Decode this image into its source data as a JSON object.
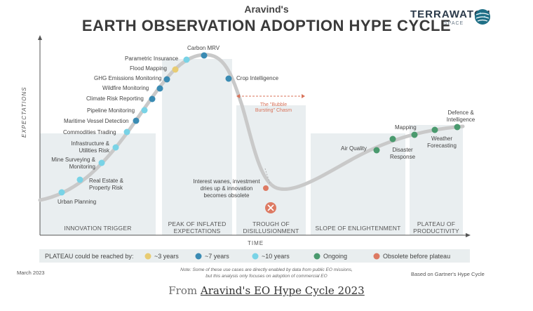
{
  "header": {
    "supertitle": "Aravind's",
    "title": "EARTH OBSERVATION ADOPTION HYPE CYCLE",
    "brand_name": "TERRAWATCH",
    "brand_sub": "SPACE"
  },
  "axes": {
    "y_label": "EXPECTATIONS",
    "x_label": "TIME"
  },
  "phases": [
    {
      "label": "INNOVATION TRIGGER"
    },
    {
      "label": "PEAK OF INFLATED EXPECTATIONS"
    },
    {
      "label": "TROUGH OF DISILLUSIONMENT"
    },
    {
      "label": "SLOPE OF ENLIGHTENMENT"
    },
    {
      "label": "PLATEAU OF PRODUCTIVITY"
    }
  ],
  "chasm_label": "The \"Bubble Bursting\" Chasm",
  "colors": {
    "3_years": "#e8cc73",
    "7_years": "#3a8bb3",
    "10_years": "#79d3e6",
    "ongoing": "#4a9a6e",
    "obsolete": "#dd7a63",
    "curve": "#c9c9c9",
    "phase_fill": "#e9eef0",
    "chasm": "#d9735a"
  },
  "use_cases": [
    {
      "name": "Urban Planning",
      "category": "10_years"
    },
    {
      "name": "Real Estate & Property Risk",
      "category": "10_years"
    },
    {
      "name": "Mine Surveying & Monitoring",
      "category": "10_years"
    },
    {
      "name": "Infrastructure & Utilities Risk",
      "category": "10_years"
    },
    {
      "name": "Commodities Trading",
      "category": "10_years"
    },
    {
      "name": "Maritime Vessel Detection",
      "category": "7_years"
    },
    {
      "name": "Pipeline Monitoring",
      "category": "10_years"
    },
    {
      "name": "Climate Risk Reporting",
      "category": "7_years"
    },
    {
      "name": "Wildfire Monitoring",
      "category": "7_years"
    },
    {
      "name": "GHG Emissions Monitoring",
      "category": "7_years"
    },
    {
      "name": "Flood Mapping",
      "category": "3_years"
    },
    {
      "name": "Parametric Insurance",
      "category": "10_years"
    },
    {
      "name": "Carbon MRV",
      "category": "7_years"
    },
    {
      "name": "Crop Intelligence",
      "category": "7_years"
    },
    {
      "name": "Interest wanes, investment dries up & innovation becomes obsolete",
      "category": "obsolete"
    },
    {
      "name": "Air Quality",
      "category": "ongoing"
    },
    {
      "name": "Disaster Response",
      "category": "ongoing"
    },
    {
      "name": "Mapping",
      "category": "ongoing"
    },
    {
      "name": "Weather Forecasting",
      "category": "ongoing"
    },
    {
      "name": "Defence & Intelligence",
      "category": "ongoing"
    }
  ],
  "legend": {
    "title": "PLATEAU could be reached by:",
    "items": [
      {
        "label": "~3 years",
        "key": "3_years"
      },
      {
        "label": "~7 years",
        "key": "7_years"
      },
      {
        "label": "~10 years",
        "key": "10_years"
      },
      {
        "label": "Ongoing",
        "key": "ongoing"
      },
      {
        "label": "Obsolete before plateau",
        "key": "obsolete"
      }
    ]
  },
  "footer": {
    "date": "March 2023",
    "note_line1": "Note: Some of these use cases are directly enabled by data from public EO missions,",
    "note_line2": "but this analysis only focuses on adoption of commercial EO",
    "credit": "Based on Gartner's Hype Cycle",
    "from_prefix": "From ",
    "from_link": "Aravind's EO Hype Cycle 2023"
  }
}
